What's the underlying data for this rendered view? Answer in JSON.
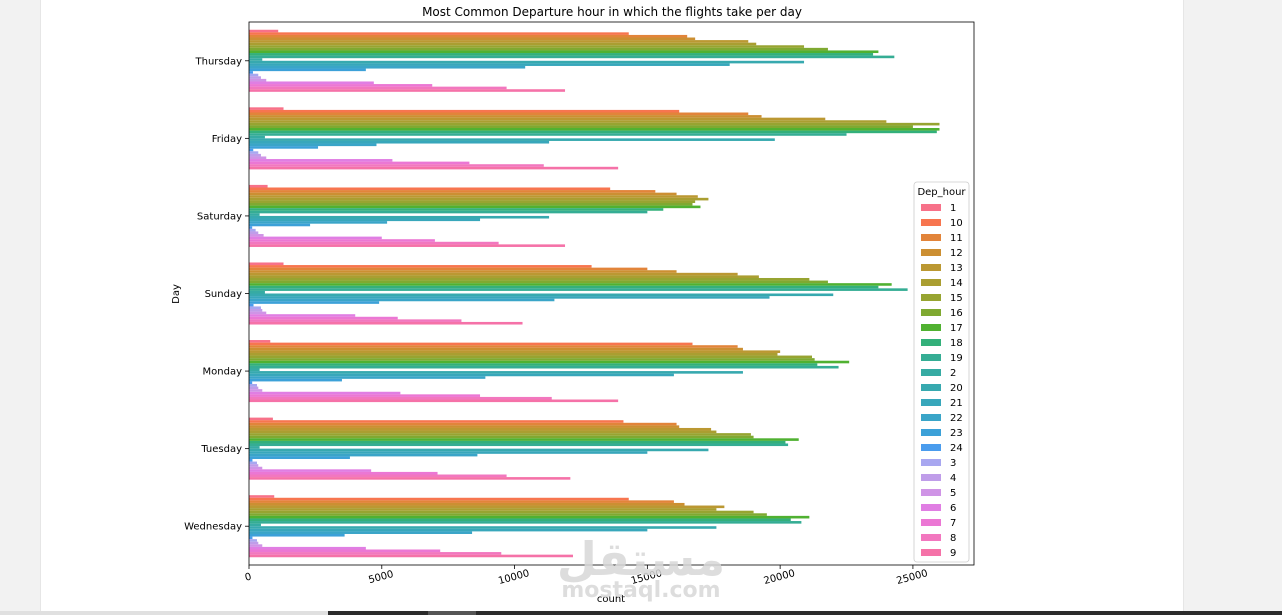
{
  "chart_data": {
    "type": "bar",
    "orientation": "horizontal",
    "title": "Most Common Departure hour in which the flights take per day",
    "xlabel": "count",
    "ylabel": "Day",
    "xlim": [
      0,
      27300
    ],
    "x_ticks": [
      0,
      5000,
      10000,
      15000,
      20000,
      25000
    ],
    "grid": false,
    "legend_position": "right",
    "legend_title": "Dep_hour",
    "categories": [
      "Thursday",
      "Friday",
      "Saturday",
      "Sunday",
      "Monday",
      "Tuesday",
      "Wednesday"
    ],
    "series": [
      {
        "name": "1",
        "color": "#f77189",
        "values": [
          1100,
          1300,
          700,
          1300,
          800,
          900,
          950
        ]
      },
      {
        "name": "10",
        "color": "#f7754f",
        "values": [
          14300,
          16200,
          13600,
          12900,
          16700,
          14100,
          14300
        ]
      },
      {
        "name": "11",
        "color": "#e2843a",
        "values": [
          16500,
          18800,
          15300,
          15000,
          18400,
          16100,
          16000
        ]
      },
      {
        "name": "12",
        "color": "#cc8f32",
        "values": [
          16800,
          19300,
          16100,
          16100,
          18600,
          16200,
          16400
        ]
      },
      {
        "name": "13",
        "color": "#bb9832",
        "values": [
          18800,
          21700,
          16900,
          18400,
          20000,
          17400,
          17900
        ]
      },
      {
        "name": "14",
        "color": "#aa9e31",
        "values": [
          19100,
          24000,
          17300,
          19200,
          19900,
          17600,
          17600
        ]
      },
      {
        "name": "15",
        "color": "#97a431",
        "values": [
          20900,
          26000,
          16800,
          21100,
          21200,
          18900,
          19000
        ]
      },
      {
        "name": "16",
        "color": "#7fa931",
        "values": [
          21800,
          25000,
          16700,
          21800,
          21300,
          19000,
          19500
        ]
      },
      {
        "name": "17",
        "color": "#50b131",
        "values": [
          23700,
          26000,
          17000,
          24200,
          22600,
          20700,
          21100
        ]
      },
      {
        "name": "18",
        "color": "#33b07a",
        "values": [
          23500,
          25900,
          15600,
          23700,
          21400,
          20200,
          20400
        ]
      },
      {
        "name": "19",
        "color": "#35ad94",
        "values": [
          24300,
          22500,
          15000,
          24800,
          22200,
          20300,
          20800
        ]
      },
      {
        "name": "2",
        "color": "#36aba3",
        "values": [
          500,
          600,
          400,
          600,
          400,
          400,
          450
        ]
      },
      {
        "name": "20",
        "color": "#37a9af",
        "values": [
          20900,
          19800,
          11300,
          22000,
          18600,
          17300,
          17600
        ]
      },
      {
        "name": "21",
        "color": "#38a7bb",
        "values": [
          18100,
          11300,
          8700,
          19600,
          16000,
          15000,
          15000
        ]
      },
      {
        "name": "22",
        "color": "#3aa5c8",
        "values": [
          10400,
          4800,
          5200,
          11500,
          8900,
          8600,
          8400
        ]
      },
      {
        "name": "23",
        "color": "#3ca1d8",
        "values": [
          4400,
          2600,
          2300,
          4900,
          3500,
          3800,
          3600
        ]
      },
      {
        "name": "24",
        "color": "#4a9ced",
        "values": [
          150,
          160,
          120,
          170,
          120,
          130,
          130
        ]
      },
      {
        "name": "3",
        "color": "#a8a7f0",
        "values": [
          350,
          350,
          250,
          450,
          300,
          300,
          300
        ]
      },
      {
        "name": "4",
        "color": "#bf9de9",
        "values": [
          450,
          450,
          350,
          500,
          350,
          350,
          350
        ]
      },
      {
        "name": "5",
        "color": "#cf94e6",
        "values": [
          650,
          650,
          550,
          650,
          500,
          500,
          500
        ]
      },
      {
        "name": "6",
        "color": "#e07ee3",
        "values": [
          4700,
          5400,
          5000,
          4000,
          5700,
          4600,
          4400
        ]
      },
      {
        "name": "7",
        "color": "#eb77d4",
        "values": [
          6900,
          8300,
          7000,
          5600,
          8700,
          7100,
          7200
        ]
      },
      {
        "name": "8",
        "color": "#f277bf",
        "values": [
          9700,
          11100,
          9400,
          8000,
          11400,
          9700,
          9500
        ]
      },
      {
        "name": "9",
        "color": "#f572a8",
        "values": [
          11900,
          13900,
          11900,
          10300,
          13900,
          12100,
          12200
        ]
      }
    ]
  },
  "watermark": {
    "arabic": "مستقل",
    "latin": "mostaql.com"
  }
}
